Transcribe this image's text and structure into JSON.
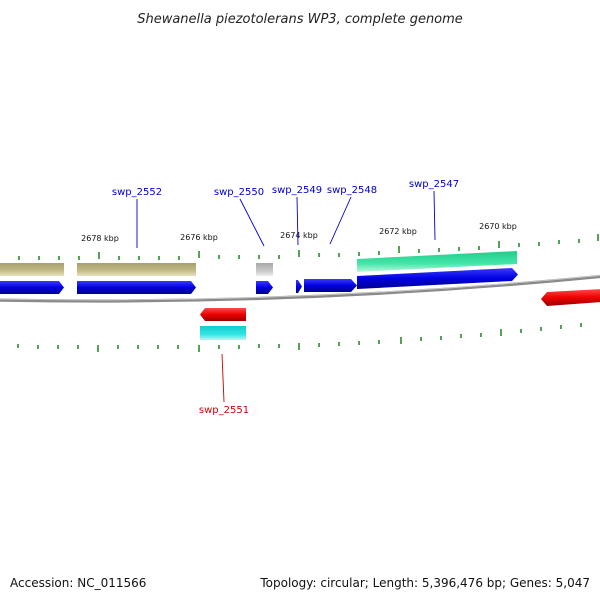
{
  "title": "Shewanella piezotolerans WP3, complete genome",
  "footer": {
    "accession": "Accession: NC_011566",
    "summary": "Topology: circular; Length: 5,396,476 bp; Genes: 5,047"
  },
  "scale_labels": [
    "2678 kbp",
    "2676 kbp",
    "2674 kbp",
    "2672 kbp",
    "2670 kbp"
  ],
  "gene_labels": {
    "swp_2552": "swp_2552",
    "swp_2550": "swp_2550",
    "swp_2549": "swp_2549",
    "swp_2548": "swp_2548",
    "swp_2547": "swp_2547",
    "swp_2551": "swp_2551"
  },
  "colors": {
    "forward_cds": "#0000ee",
    "reverse_cds": "#ee0000",
    "feature_olive": "#b8b07a",
    "feature_green": "#33dd99",
    "feature_gray": "#bbbbbb",
    "feature_cyan": "#22dddd",
    "backbone": "#888888",
    "tick": "#2a8a2a",
    "forward_label": "#0000cc",
    "reverse_label": "#cc0000"
  }
}
